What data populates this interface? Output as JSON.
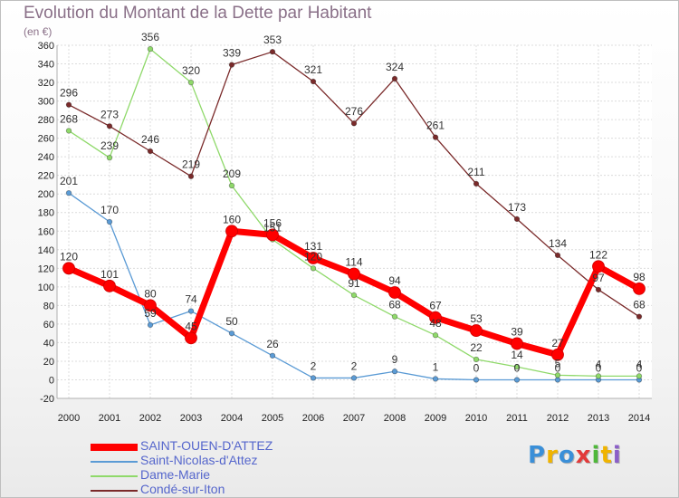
{
  "chart_data": {
    "type": "line",
    "title": "Evolution du Montant de la Dette par Habitant",
    "subtitle": "(en €)",
    "xlabel": "",
    "ylabel": "",
    "x": [
      "2000",
      "2001",
      "2002",
      "2003",
      "2004",
      "2005",
      "2006",
      "2007",
      "2008",
      "2009",
      "2010",
      "2011",
      "2012",
      "2013",
      "2014"
    ],
    "ylim": [
      -20,
      360
    ],
    "yticks": [
      -20,
      0,
      20,
      40,
      60,
      80,
      100,
      120,
      140,
      160,
      180,
      200,
      220,
      240,
      260,
      280,
      300,
      320,
      340,
      360
    ],
    "grid": true,
    "legend_position": "bottom-left",
    "series": [
      {
        "name": "SAINT-OUEN-D'ATTEZ",
        "color": "#ff0000",
        "values": [
          120,
          101,
          80,
          45,
          160,
          156,
          131,
          114,
          94,
          67,
          53,
          39,
          27,
          122,
          98
        ]
      },
      {
        "name": "Saint-Nicolas-d'Attez",
        "color": "#5b9bd5",
        "values": [
          201,
          170,
          59,
          74,
          50,
          26,
          2,
          2,
          9,
          1,
          0,
          0,
          0,
          0,
          0
        ]
      },
      {
        "name": "Dame-Marie",
        "color": "#8fd96a",
        "values": [
          268,
          239,
          356,
          320,
          209,
          151,
          120,
          91,
          68,
          48,
          22,
          14,
          5,
          4,
          4
        ]
      },
      {
        "name": "Condé-sur-Iton",
        "color": "#7a2a2a",
        "values": [
          296,
          273,
          246,
          219,
          339,
          353,
          321,
          276,
          324,
          261,
          211,
          173,
          134,
          97,
          68
        ]
      }
    ]
  },
  "logo": {
    "letters": [
      "P",
      "r",
      "o",
      "x",
      "i",
      "t",
      "i"
    ],
    "colors": [
      "#3a8fd8",
      "#f0b400",
      "#3a8fd8",
      "#e23a3a",
      "#4fb83a",
      "#f0b400",
      "#8b5fc8"
    ]
  }
}
